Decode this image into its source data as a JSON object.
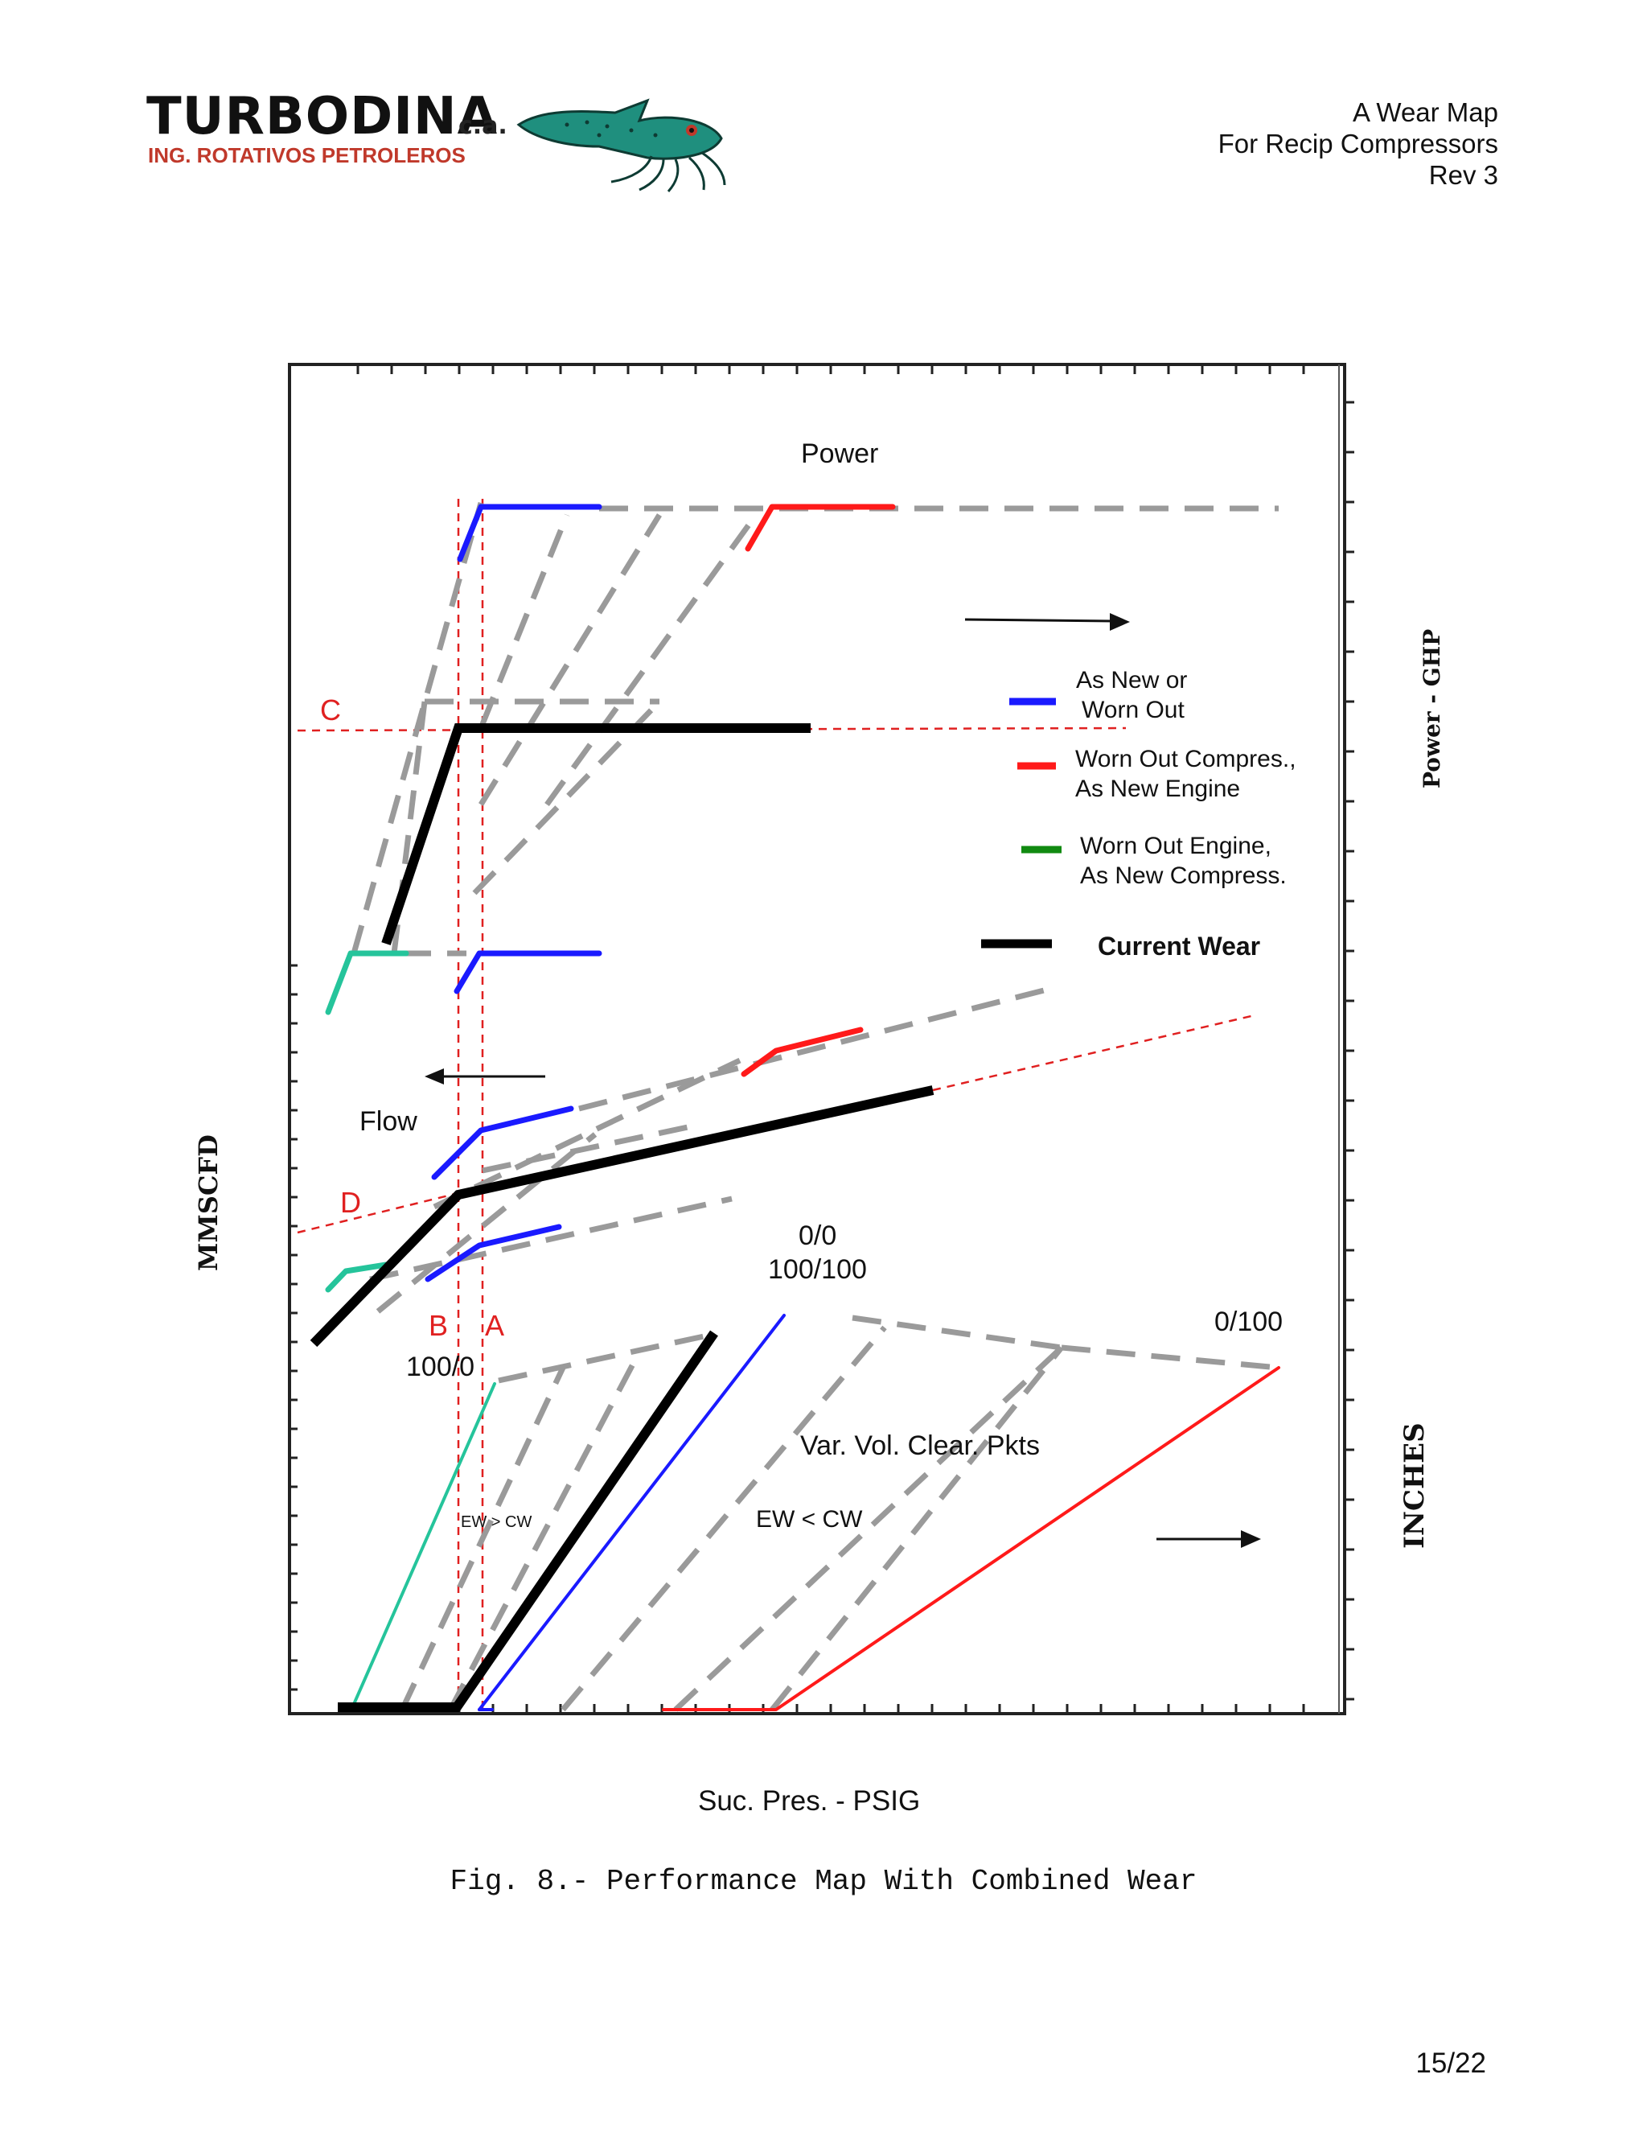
{
  "header": {
    "logo_name": "TURBODINA",
    "logo_suffix": "c.a.",
    "logo_tagline": "ING. ROTATIVOS PETROLEROS",
    "doc_title": "A Wear Map",
    "doc_subtitle": "For Recip Compressors",
    "revision": "Rev 3"
  },
  "figure": {
    "power_label": "Power",
    "flow_label": "Flow",
    "right_axis_top": "Power - GHP",
    "right_axis_bottom": "INCHES",
    "left_axis": "MMSCFD",
    "x_axis": "Suc. Pres. - PSIG",
    "point_c": "C",
    "point_d": "D",
    "point_b": "B",
    "point_a": "A",
    "label_00": "0/0",
    "label_100100": "100/100",
    "label_1000": "100/0",
    "label_0100": "0/100",
    "label_varvol": "Var. Vol. Clear. Pkts",
    "label_ew_gt": "EW > CW",
    "label_ew_lt": "EW < CW",
    "legend": [
      {
        "line1": "As New  or",
        "line2": "Worn Out",
        "color": "#1a1aff"
      },
      {
        "line1": "Worn Out Compres.,",
        "line2": "As New Engine",
        "color": "#ff1a1a"
      },
      {
        "line1": "Worn Out Engine,",
        "line2": "As New Compress.",
        "color": "#118a11"
      },
      {
        "line1": "Current Wear",
        "line2": "",
        "color": "#000000"
      }
    ]
  },
  "caption": "Fig. 8.- Performance Map With Combined Wear",
  "page_number": "15/22"
}
